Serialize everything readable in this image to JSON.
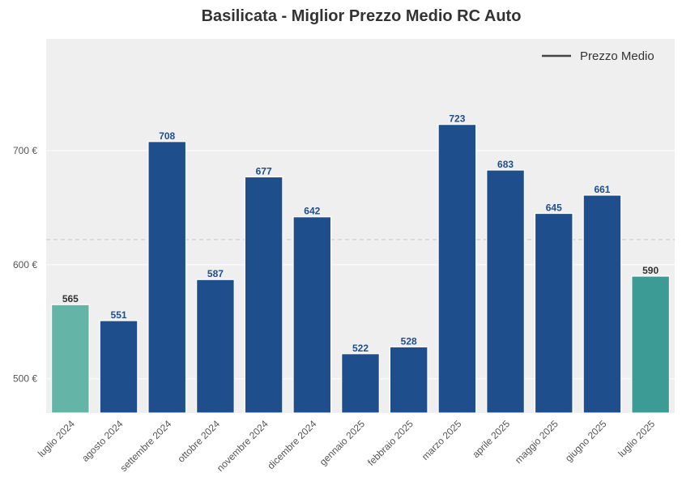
{
  "chart_data": {
    "type": "bar",
    "title": "Basilicata - Miglior Prezzo Medio RC Auto",
    "xlabel": "",
    "ylabel": "",
    "categories": [
      "luglio 2024",
      "agosto 2024",
      "settembre 2024",
      "ottobre 2024",
      "novembre 2024",
      "dicembre 2024",
      "gennaio 2025",
      "febbraio 2025",
      "marzo 2025",
      "aprile 2025",
      "maggio 2025",
      "giugno 2025",
      "luglio 2025"
    ],
    "values": [
      565,
      551,
      708,
      587,
      677,
      642,
      522,
      528,
      723,
      683,
      645,
      661,
      590
    ],
    "data_labels": [
      "565",
      "551",
      "708",
      "587",
      "677",
      "642",
      "522",
      "528",
      "723",
      "683",
      "645",
      "661",
      "590"
    ],
    "ylim": [
      470,
      798
    ],
    "yticks": [
      500,
      600,
      700
    ],
    "ytick_labels": [
      "500 €",
      "600 €",
      "700 €"
    ],
    "reference_line": 622,
    "grid": true,
    "legend": {
      "position": "top-right",
      "entries": [
        "Prezzo Medio"
      ]
    },
    "colors": {
      "bar_default": "#1f4e8c",
      "bar_first": "#64b5a8",
      "bar_last": "#3c9c95",
      "label_default": "#1f4e8c",
      "label_highlight": "#333333",
      "plot_bg": "#efefef",
      "reference_line": "#c8c8c8",
      "legend_line": "#444444"
    }
  }
}
